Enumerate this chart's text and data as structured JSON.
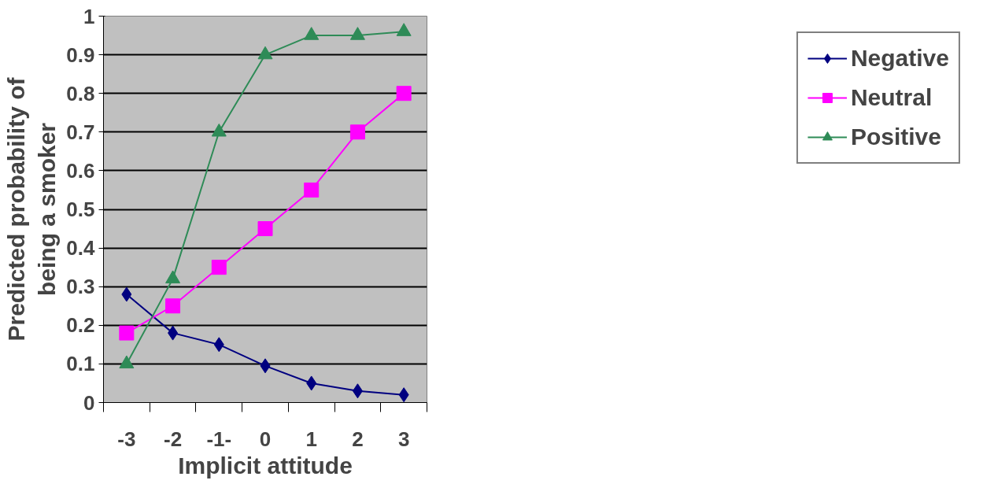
{
  "chart_data": {
    "type": "line",
    "xlabel": "Implicit attitude",
    "ylabel": "Predicted probability of\nbeing a smoker",
    "categories": [
      "-3",
      "-2",
      "-1-",
      "0",
      "1",
      "2",
      "3"
    ],
    "series": [
      {
        "name": "Negative",
        "color": "#000080",
        "marker": "diamond",
        "values": [
          0.28,
          0.18,
          0.15,
          0.095,
          0.05,
          0.03,
          0.02
        ]
      },
      {
        "name": "Neutral",
        "color": "#ff00ff",
        "marker": "square",
        "values": [
          0.18,
          0.25,
          0.35,
          0.45,
          0.55,
          0.7,
          0.8
        ]
      },
      {
        "name": "Positive",
        "color": "#2e8b57",
        "marker": "triangle",
        "values": [
          0.1,
          0.32,
          0.7,
          0.9,
          0.95,
          0.95,
          0.96
        ]
      }
    ],
    "ylim": [
      0,
      1
    ],
    "yticks": [
      0,
      0.1,
      0.2,
      0.3,
      0.4,
      0.5,
      0.6,
      0.7,
      0.8,
      0.9,
      1
    ],
    "grid": "y",
    "legend": "right",
    "line_style": "solid"
  }
}
